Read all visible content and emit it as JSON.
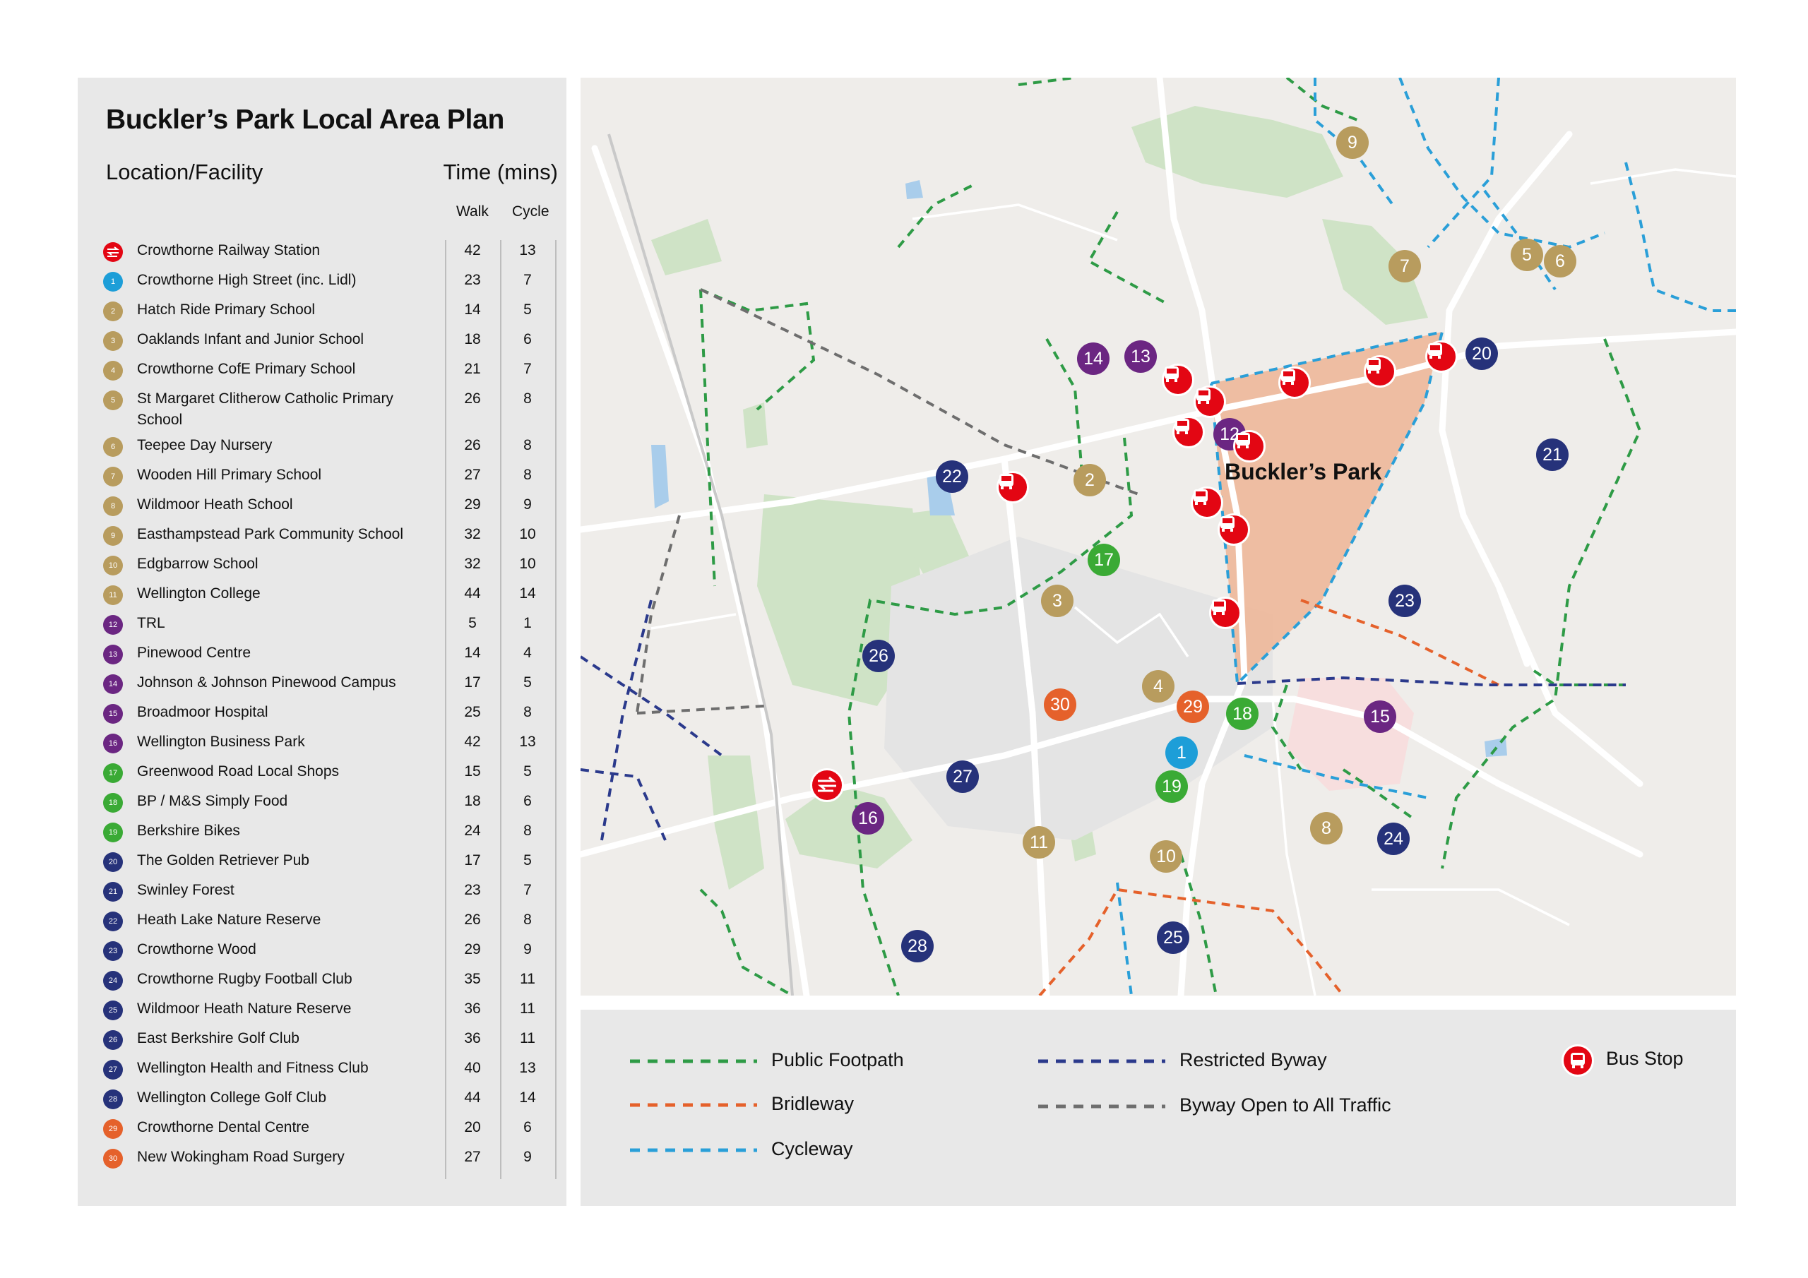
{
  "title": "Buckler’s Park Local Area Plan",
  "header": {
    "location": "Location/Facility",
    "time": "Time (mins)",
    "walk": "Walk",
    "cycle": "Cycle"
  },
  "colors": {
    "gold": "#b89c5e",
    "purple": "#6b2682",
    "green": "#3aaa35",
    "navy": "#26327a",
    "blue": "#1d9ed8",
    "orange": "#e5612b",
    "red": "#e30613"
  },
  "facilities": [
    {
      "badge": "",
      "color": "#e30613",
      "name": "Crowthorne Railway Station",
      "walk": "42",
      "cycle": "13",
      "icon": "rail-icon"
    },
    {
      "badge": "1",
      "color": "#1d9ed8",
      "name": "Crowthorne High Street (inc. Lidl)",
      "walk": "23",
      "cycle": "7"
    },
    {
      "badge": "2",
      "color": "#b89c5e",
      "name": "Hatch Ride Primary School",
      "walk": "14",
      "cycle": "5"
    },
    {
      "badge": "3",
      "color": "#b89c5e",
      "name": "Oaklands Infant and Junior School",
      "walk": "18",
      "cycle": "6"
    },
    {
      "badge": "4",
      "color": "#b89c5e",
      "name": "Crowthorne CofE Primary School",
      "walk": "21",
      "cycle": "7"
    },
    {
      "badge": "5",
      "color": "#b89c5e",
      "name": "St Margaret Clitherow Catholic Primary School",
      "walk": "26",
      "cycle": "8"
    },
    {
      "badge": "6",
      "color": "#b89c5e",
      "name": "Teepee Day Nursery",
      "walk": "26",
      "cycle": "8"
    },
    {
      "badge": "7",
      "color": "#b89c5e",
      "name": "Wooden Hill Primary School",
      "walk": "27",
      "cycle": "8"
    },
    {
      "badge": "8",
      "color": "#b89c5e",
      "name": "Wildmoor Heath School",
      "walk": "29",
      "cycle": "9"
    },
    {
      "badge": "9",
      "color": "#b89c5e",
      "name": "Easthampstead Park Community School",
      "walk": "32",
      "cycle": "10"
    },
    {
      "badge": "10",
      "color": "#b89c5e",
      "name": "Edgbarrow School",
      "walk": "32",
      "cycle": "10"
    },
    {
      "badge": "11",
      "color": "#b89c5e",
      "name": "Wellington College",
      "walk": "44",
      "cycle": "14"
    },
    {
      "badge": "12",
      "color": "#6b2682",
      "name": "TRL",
      "walk": "5",
      "cycle": "1"
    },
    {
      "badge": "13",
      "color": "#6b2682",
      "name": "Pinewood Centre",
      "walk": "14",
      "cycle": "4"
    },
    {
      "badge": "14",
      "color": "#6b2682",
      "name": "Johnson & Johnson Pinewood Campus",
      "walk": "17",
      "cycle": "5"
    },
    {
      "badge": "15",
      "color": "#6b2682",
      "name": "Broadmoor Hospital",
      "walk": "25",
      "cycle": "8"
    },
    {
      "badge": "16",
      "color": "#6b2682",
      "name": "Wellington Business Park",
      "walk": "42",
      "cycle": "13"
    },
    {
      "badge": "17",
      "color": "#3aaa35",
      "name": "Greenwood Road Local Shops",
      "walk": "15",
      "cycle": "5"
    },
    {
      "badge": "18",
      "color": "#3aaa35",
      "name": "BP / M&S Simply Food",
      "walk": "18",
      "cycle": "6"
    },
    {
      "badge": "19",
      "color": "#3aaa35",
      "name": "Berkshire Bikes",
      "walk": "24",
      "cycle": "8"
    },
    {
      "badge": "20",
      "color": "#26327a",
      "name": "The Golden Retriever Pub",
      "walk": "17",
      "cycle": "5"
    },
    {
      "badge": "21",
      "color": "#26327a",
      "name": "Swinley Forest",
      "walk": "23",
      "cycle": "7"
    },
    {
      "badge": "22",
      "color": "#26327a",
      "name": "Heath Lake Nature Reserve",
      "walk": "26",
      "cycle": "8"
    },
    {
      "badge": "23",
      "color": "#26327a",
      "name": "Crowthorne Wood",
      "walk": "29",
      "cycle": "9"
    },
    {
      "badge": "24",
      "color": "#26327a",
      "name": "Crowthorne Rugby Football Club",
      "walk": "35",
      "cycle": "11"
    },
    {
      "badge": "25",
      "color": "#26327a",
      "name": "Wildmoor Heath Nature Reserve",
      "walk": "36",
      "cycle": "11"
    },
    {
      "badge": "26",
      "color": "#26327a",
      "name": "East Berkshire Golf Club",
      "walk": "36",
      "cycle": "11"
    },
    {
      "badge": "27",
      "color": "#26327a",
      "name": "Wellington Health and Fitness Club",
      "walk": "40",
      "cycle": "13"
    },
    {
      "badge": "28",
      "color": "#26327a",
      "name": "Wellington College Golf Club",
      "walk": "44",
      "cycle": "14"
    },
    {
      "badge": "29",
      "color": "#e5612b",
      "name": "Crowthorne Dental Centre",
      "walk": "20",
      "cycle": "6"
    },
    {
      "badge": "30",
      "color": "#e5612b",
      "name": "New Wokingham Road Surgery",
      "walk": "27",
      "cycle": "9"
    }
  ],
  "map": {
    "area_label": "Buckler’s Park",
    "markers": [
      {
        "label": "9",
        "color": "#b89c5e"
      },
      {
        "label": "7",
        "color": "#b89c5e"
      },
      {
        "label": "5",
        "color": "#b89c5e"
      },
      {
        "label": "6",
        "color": "#b89c5e"
      },
      {
        "label": "14",
        "color": "#6b2682"
      },
      {
        "label": "13",
        "color": "#6b2682"
      },
      {
        "label": "20",
        "color": "#26327a"
      },
      {
        "label": "12",
        "color": "#6b2682"
      },
      {
        "label": "21",
        "color": "#26327a"
      },
      {
        "label": "22",
        "color": "#26327a"
      },
      {
        "label": "2",
        "color": "#b89c5e"
      },
      {
        "label": "17",
        "color": "#3aaa35"
      },
      {
        "label": "3",
        "color": "#b89c5e"
      },
      {
        "label": "23",
        "color": "#26327a"
      },
      {
        "label": "26",
        "color": "#26327a"
      },
      {
        "label": "4",
        "color": "#b89c5e"
      },
      {
        "label": "30",
        "color": "#e5612b"
      },
      {
        "label": "29",
        "color": "#e5612b"
      },
      {
        "label": "18",
        "color": "#3aaa35"
      },
      {
        "label": "15",
        "color": "#6b2682"
      },
      {
        "label": "1",
        "color": "#1d9ed8"
      },
      {
        "label": "27",
        "color": "#26327a"
      },
      {
        "label": "19",
        "color": "#3aaa35"
      },
      {
        "label": "16",
        "color": "#6b2682"
      },
      {
        "label": "8",
        "color": "#b89c5e"
      },
      {
        "label": "24",
        "color": "#26327a"
      },
      {
        "label": "11",
        "color": "#b89c5e"
      },
      {
        "label": "10",
        "color": "#b89c5e"
      },
      {
        "label": "25",
        "color": "#26327a"
      },
      {
        "label": "28",
        "color": "#26327a"
      }
    ],
    "bus_stop_icon": "bus-icon",
    "station_icon": "rail-icon"
  },
  "legend": {
    "footpath": {
      "label": "Public Footpath",
      "color": "#2e9b46"
    },
    "bridleway": {
      "label": "Bridleway",
      "color": "#e5612b"
    },
    "cycleway": {
      "label": "Cycleway",
      "color": "#2a9fd8"
    },
    "restricted": {
      "label": "Restricted Byway",
      "color": "#2b3a8c"
    },
    "boat": {
      "label": "Byway Open to All Traffic",
      "color": "#6e6e6e"
    },
    "bus": {
      "label": "Bus Stop"
    }
  }
}
